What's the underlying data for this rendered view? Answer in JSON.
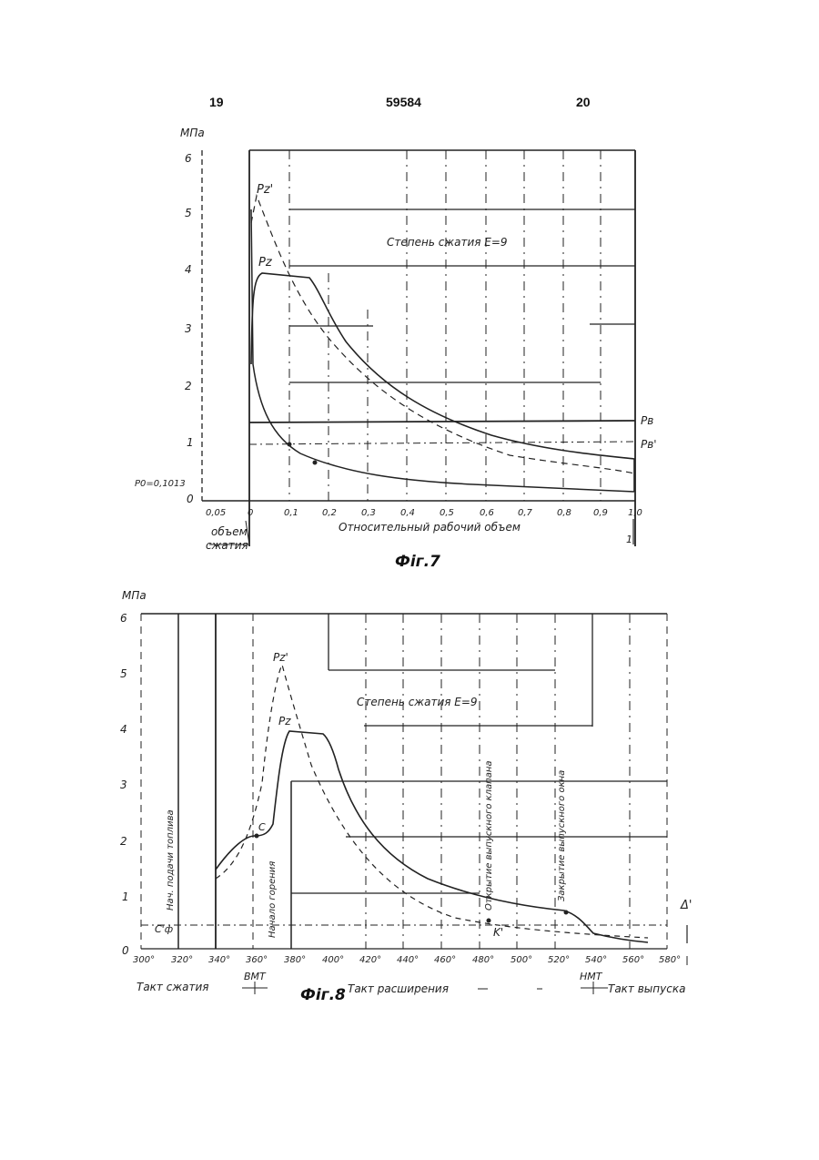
{
  "header": {
    "left_page": "19",
    "patent_no": "59584",
    "right_page": "20"
  },
  "fig7": {
    "caption": "Фіг.7",
    "y_unit": "МПа",
    "y_ticks": [
      "0",
      "1",
      "2",
      "3",
      "4",
      "5",
      "6"
    ],
    "x_ticks": [
      "0,05",
      "0",
      "0,1",
      "0,2",
      "0,3",
      "0,4",
      "0,5",
      "0,6",
      "0,7",
      "0,8",
      "0,9",
      "1,0"
    ],
    "p0_label": "P0=0,1013",
    "compression_label": "Степень сжатия E=9",
    "xlabel": "Относительный рабочий объем",
    "volume_label_1": "объем",
    "volume_label_2": "сжатия",
    "right_mark": "1",
    "curve_labels": {
      "pz_prime": "Pz'",
      "pz": "Pz",
      "pb": "Pв",
      "pb_prime": "Pв'"
    }
  },
  "fig8": {
    "caption": "Фіг.8",
    "y_unit": "МПа",
    "y_ticks": [
      "0",
      "1",
      "2",
      "3",
      "4",
      "5",
      "6"
    ],
    "x_ticks": [
      "300°",
      "320°",
      "340°",
      "360°",
      "380°",
      "400°",
      "420°",
      "440°",
      "460°",
      "480°",
      "500°",
      "520°",
      "540°",
      "560°",
      "580°"
    ],
    "compression_label": "Степень сжатия E=9",
    "stroke_compression": "Такт сжатия",
    "stroke_expansion": "Такт расширения",
    "stroke_exhaust": "Такт выпуска",
    "bmt": "ВМТ",
    "nmt": "НМТ",
    "vertical_note_1": "Нач. подачи топлива",
    "vertical_note_2": "Начало горения",
    "vertical_note_3": "Открытие выпускного клапана",
    "vertical_note_4": "Закрытие выпускного окна",
    "curve_labels": {
      "pz_prime": "Pz'",
      "pz": "Pz",
      "c": "C",
      "k": "K'",
      "delta": "Δ'",
      "c_prime": "С'ф"
    }
  }
}
